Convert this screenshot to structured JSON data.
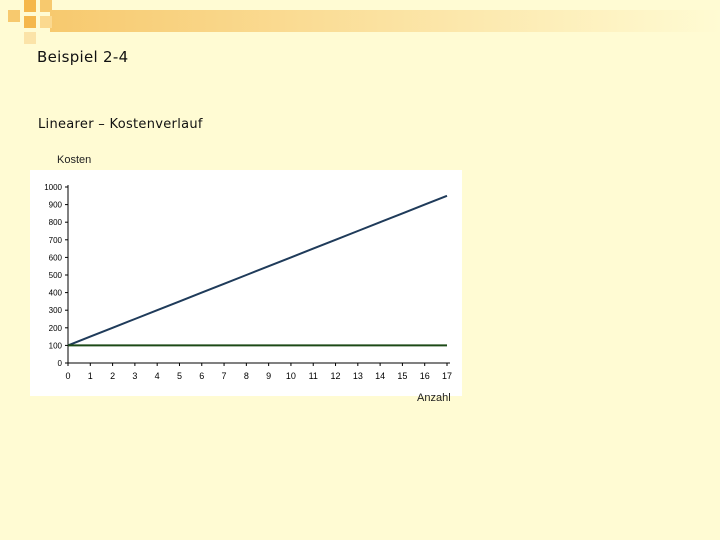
{
  "slide": {
    "title": "Beispiel 2-4",
    "subtitle": "Linearer – Kostenverlauf"
  },
  "colors": {
    "background": "#fffbd3",
    "plot_bg": "#ffffff",
    "line_total": "#1f3b5a",
    "line_fixed": "#1d4a17",
    "deco_orange": "#f5b74a"
  },
  "chart_data": {
    "type": "line",
    "ylabel": "Kosten",
    "xlabel": "Anzahl",
    "categories": [
      "0",
      "1",
      "2",
      "3",
      "4",
      "5",
      "6",
      "7",
      "8",
      "9",
      "10",
      "11",
      "12",
      "13",
      "14",
      "15",
      "16",
      "17"
    ],
    "x": [
      0,
      1,
      2,
      3,
      4,
      5,
      6,
      7,
      8,
      9,
      10,
      11,
      12,
      13,
      14,
      15,
      16,
      17
    ],
    "ylim": [
      0,
      1000
    ],
    "yticks": [
      0,
      100,
      200,
      300,
      400,
      500,
      600,
      700,
      800,
      900,
      1000
    ],
    "grid": false,
    "series": [
      {
        "values": [
          100,
          150,
          200,
          250,
          300,
          350,
          400,
          450,
          500,
          550,
          600,
          650,
          700,
          750,
          800,
          850,
          900,
          950
        ]
      },
      {
        "values": [
          100,
          100,
          100,
          100,
          100,
          100,
          100,
          100,
          100,
          100,
          100,
          100,
          100,
          100,
          100,
          100,
          100,
          100
        ]
      }
    ]
  }
}
